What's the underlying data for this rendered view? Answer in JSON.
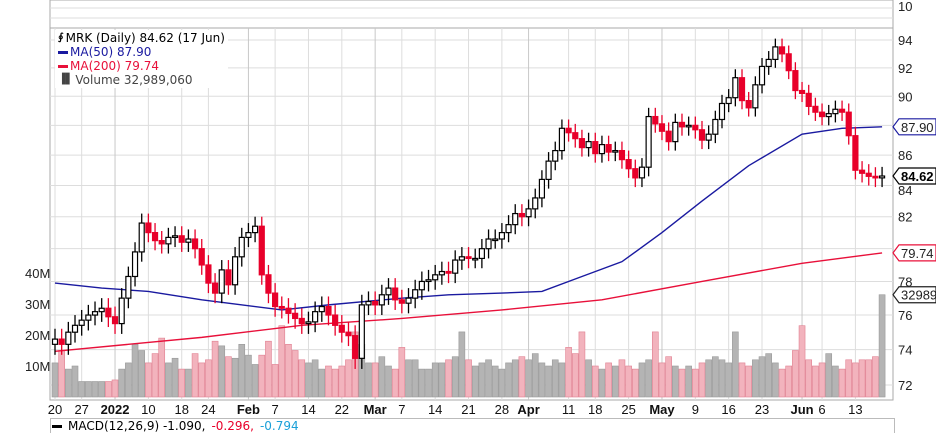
{
  "legend": {
    "title": "MRK (Daily) 84.62 (17 Jun)",
    "ma50": "MA(50) 87.90",
    "ma200": "MA(200) 79.74",
    "volume": "Volume 32,989,060"
  },
  "macd": {
    "label": "MACD(12,26,9) -1.090,",
    "signal": "-0.296,",
    "hist": "-0.794"
  },
  "top_panel_label": "10",
  "colors": {
    "up": "#000000",
    "down": "#e8002a",
    "ma50": "#1a1aa0",
    "ma200": "#e8103a",
    "vol_up": "#b4b4b4",
    "vol_down": "#f2b3bd",
    "grid": "#dddddd"
  },
  "chart_data": {
    "type": "candlestick",
    "symbol": "MRK",
    "y_scale": "log",
    "ylim": [
      71.2,
      95.5
    ],
    "yticks": [
      72,
      74,
      76,
      78,
      80,
      82,
      84,
      86,
      88,
      90,
      92,
      94
    ],
    "ytick_labels": [
      "72",
      "74",
      "76",
      "78",
      "",
      "82",
      "84",
      "86",
      "",
      "90",
      "92",
      "94"
    ],
    "volume_ticks": [
      {
        "v": 10,
        "label": "10M"
      },
      {
        "v": 20,
        "label": "20M"
      },
      {
        "v": 30,
        "label": "30M"
      },
      {
        "v": 40,
        "label": "40M"
      }
    ],
    "xlabels": [
      {
        "i": 0,
        "label": "20",
        "month": false
      },
      {
        "i": 4,
        "label": "27",
        "month": false
      },
      {
        "i": 9,
        "label": "2022",
        "month": true
      },
      {
        "i": 14,
        "label": "10",
        "month": false
      },
      {
        "i": 19,
        "label": "18",
        "month": false
      },
      {
        "i": 23,
        "label": "24",
        "month": false
      },
      {
        "i": 29,
        "label": "Feb",
        "month": true
      },
      {
        "i": 33,
        "label": "7",
        "month": false
      },
      {
        "i": 38,
        "label": "14",
        "month": false
      },
      {
        "i": 43,
        "label": "22",
        "month": false
      },
      {
        "i": 48,
        "label": "Mar",
        "month": true
      },
      {
        "i": 52,
        "label": "7",
        "month": false
      },
      {
        "i": 57,
        "label": "14",
        "month": false
      },
      {
        "i": 62,
        "label": "21",
        "month": false
      },
      {
        "i": 67,
        "label": "28",
        "month": false
      },
      {
        "i": 71,
        "label": "Apr",
        "month": true
      },
      {
        "i": 77,
        "label": "11",
        "month": false
      },
      {
        "i": 81,
        "label": "18",
        "month": false
      },
      {
        "i": 86,
        "label": "25",
        "month": false
      },
      {
        "i": 91,
        "label": "May",
        "month": true
      },
      {
        "i": 96,
        "label": "9",
        "month": false
      },
      {
        "i": 101,
        "label": "16",
        "month": false
      },
      {
        "i": 106,
        "label": "23",
        "month": false
      },
      {
        "i": 112,
        "label": "Jun",
        "month": true
      },
      {
        "i": 115,
        "label": "6",
        "month": false
      },
      {
        "i": 120,
        "label": "13",
        "month": false
      }
    ],
    "close": [
      74.6,
      74.3,
      75.0,
      75.4,
      75.7,
      76.0,
      76.2,
      76.4,
      75.9,
      75.5,
      77.0,
      78.3,
      79.8,
      81.6,
      81.0,
      80.5,
      80.3,
      80.7,
      80.8,
      80.4,
      80.6,
      80.0,
      79.0,
      77.9,
      77.3,
      78.7,
      77.8,
      79.5,
      80.7,
      81.0,
      81.4,
      78.4,
      77.3,
      76.5,
      76.4,
      76.1,
      75.8,
      75.5,
      75.6,
      76.2,
      76.5,
      76.0,
      75.4,
      75.0,
      74.8,
      73.5,
      76.6,
      76.8,
      76.6,
      77.2,
      77.6,
      76.9,
      76.7,
      77.0,
      77.5,
      78.0,
      78.1,
      78.4,
      78.6,
      78.5,
      79.3,
      79.5,
      79.4,
      79.4,
      80.0,
      80.6,
      80.6,
      81.0,
      81.5,
      82.2,
      82.0,
      82.5,
      83.2,
      84.4,
      85.6,
      86.3,
      87.8,
      87.5,
      87.1,
      86.5,
      86.9,
      86.1,
      86.7,
      86.2,
      86.3,
      85.7,
      85.1,
      84.5,
      85.2,
      88.6,
      88.1,
      87.6,
      86.9,
      88.2,
      87.9,
      88.0,
      87.7,
      87.0,
      87.4,
      88.4,
      89.5,
      89.9,
      91.3,
      89.7,
      89.2,
      90.8,
      92.1,
      92.6,
      93.5,
      93.0,
      91.8,
      90.4,
      90.2,
      89.3,
      88.9,
      88.6,
      88.8,
      89.1,
      88.9,
      87.3,
      85.0,
      84.8,
      84.6,
      84.5,
      84.62
    ],
    "first_open": 74.3,
    "wick": 0.6,
    "last_close": 84.62,
    "volume_millions": [
      11,
      15,
      9,
      10,
      5,
      5,
      5,
      5,
      5,
      5.5,
      9,
      11,
      17,
      15,
      11,
      14,
      19,
      11,
      12.5,
      9,
      9,
      14,
      11,
      12,
      18,
      16.5,
      13,
      12.5,
      17,
      13.5,
      10.5,
      13.5,
      18,
      10.5,
      23,
      17,
      15,
      12,
      11,
      12,
      9,
      10,
      9,
      10,
      12,
      21,
      17,
      11,
      11,
      13,
      10,
      9,
      16,
      12,
      12,
      9,
      9,
      11,
      11,
      12,
      13,
      21,
      12,
      10,
      11,
      12,
      10,
      9,
      11,
      12,
      13,
      12,
      14,
      11,
      10,
      12,
      11,
      16,
      14,
      21,
      12,
      10,
      9,
      11,
      10,
      12,
      10,
      9,
      11,
      12,
      21,
      11,
      13,
      10,
      9,
      10,
      9,
      11,
      12,
      13,
      12,
      11,
      21,
      11,
      10,
      12,
      13,
      14,
      11,
      9,
      10,
      15,
      23,
      12,
      10,
      11,
      14,
      10,
      9,
      12,
      11,
      12,
      12,
      13,
      32.989
    ],
    "last_volume_label": "32989",
    "ma50": [
      [
        0,
        77.9
      ],
      [
        7,
        77.6
      ],
      [
        14,
        77.4
      ],
      [
        22,
        76.9
      ],
      [
        26,
        76.7
      ],
      [
        34,
        76.3
      ],
      [
        41,
        76.6
      ],
      [
        52,
        77.0
      ],
      [
        59,
        77.2
      ],
      [
        67,
        77.3
      ],
      [
        73,
        77.4
      ],
      [
        79,
        78.3
      ],
      [
        85,
        79.2
      ],
      [
        91,
        81.0
      ],
      [
        97,
        83.0
      ],
      [
        104,
        85.3
      ],
      [
        112,
        87.4
      ],
      [
        118,
        87.8
      ],
      [
        124,
        87.9
      ]
    ],
    "ma200": [
      [
        0,
        73.9
      ],
      [
        22,
        74.7
      ],
      [
        37,
        75.4
      ],
      [
        52,
        75.8
      ],
      [
        67,
        76.3
      ],
      [
        82,
        76.9
      ],
      [
        97,
        78.0
      ],
      [
        112,
        79.1
      ],
      [
        124,
        79.74
      ]
    ],
    "ma50_label": "87.90",
    "ma200_label": "79.74",
    "close_label": "84.62"
  }
}
